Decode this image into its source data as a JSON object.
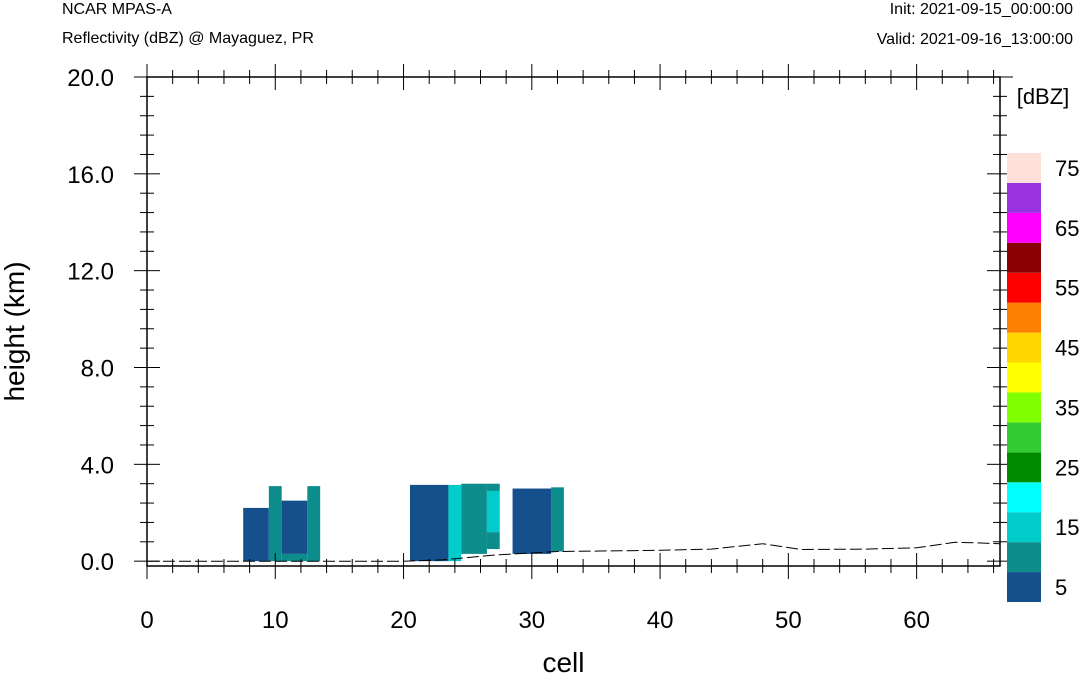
{
  "header": {
    "source": "NCAR MPAS-A",
    "subtitle": "Reflectivity (dBZ) @ Mayaguez, PR",
    "init": "Init: 2021-09-15_00:00:00",
    "valid": "Valid: 2021-09-16_13:00:00"
  },
  "chart_data": {
    "type": "heatmap",
    "xlabel": "cell",
    "ylabel": "height (km)",
    "xlim": [
      0,
      66.5
    ],
    "ylim": [
      -0.2,
      20
    ],
    "x_ticks": [
      0,
      10,
      20,
      30,
      40,
      50,
      60
    ],
    "y_ticks": [
      0,
      4,
      8,
      12,
      16,
      20
    ],
    "y_tick_labels": [
      "0.0",
      "4.0",
      "8.0",
      "12.0",
      "16.0",
      "20.0"
    ],
    "grid": false,
    "cells": [
      {
        "x0": 7.5,
        "x1": 9.5,
        "y0": 0,
        "y1": 2.2,
        "dbz": 5
      },
      {
        "x0": 9.5,
        "x1": 10.5,
        "y0": 0,
        "y1": 3.1,
        "dbz": 10
      },
      {
        "x0": 10.5,
        "x1": 12.5,
        "y0": 0,
        "y1": 0.3,
        "dbz": 10
      },
      {
        "x0": 10.5,
        "x1": 12.5,
        "y0": 0.3,
        "y1": 2.5,
        "dbz": 5
      },
      {
        "x0": 12.5,
        "x1": 13.5,
        "y0": 0,
        "y1": 3.1,
        "dbz": 10
      },
      {
        "x0": 20.5,
        "x1": 23.5,
        "y0": 0,
        "y1": 3.15,
        "dbz": 5
      },
      {
        "x0": 23.5,
        "x1": 24.5,
        "y0": 0,
        "y1": 3.15,
        "dbz": 15
      },
      {
        "x0": 24.5,
        "x1": 26.5,
        "y0": 0.3,
        "y1": 3.2,
        "dbz": 10
      },
      {
        "x0": 26.5,
        "x1": 27.5,
        "y0": 1.2,
        "y1": 2.9,
        "dbz": 15
      },
      {
        "x0": 26.5,
        "x1": 27.5,
        "y0": 2.9,
        "y1": 3.2,
        "dbz": 10
      },
      {
        "x0": 26.5,
        "x1": 27.5,
        "y0": 0.5,
        "y1": 1.2,
        "dbz": 10
      },
      {
        "x0": 28.5,
        "x1": 31.5,
        "y0": 0.3,
        "y1": 3.0,
        "dbz": 5
      },
      {
        "x0": 31.5,
        "x1": 32.5,
        "y0": 0.4,
        "y1": 3.05,
        "dbz": 10
      }
    ],
    "terrain": {
      "x": [
        0,
        10,
        20,
        23,
        27,
        32,
        40,
        44,
        48,
        51,
        56,
        60,
        63,
        65,
        66.5
      ],
      "y": [
        0.0,
        0.0,
        0.0,
        0.05,
        0.25,
        0.4,
        0.45,
        0.5,
        0.72,
        0.48,
        0.5,
        0.55,
        0.78,
        0.75,
        0.72
      ]
    },
    "colorbar": {
      "title": "[dBZ]",
      "levels": [
        5,
        10,
        15,
        20,
        25,
        30,
        35,
        40,
        45,
        50,
        55,
        60,
        65,
        70,
        75
      ],
      "colors": [
        "#15508c",
        "#0d8c8c",
        "#00cccc",
        "#00ffff",
        "#008a00",
        "#33cc33",
        "#7fff00",
        "#ffff00",
        "#ffd500",
        "#ff7f00",
        "#ff0000",
        "#8b0000",
        "#ff00ff",
        "#9932e0",
        "#ffe0d8"
      ],
      "labels": [
        "5",
        "15",
        "25",
        "35",
        "45",
        "55",
        "65",
        "75"
      ]
    }
  }
}
